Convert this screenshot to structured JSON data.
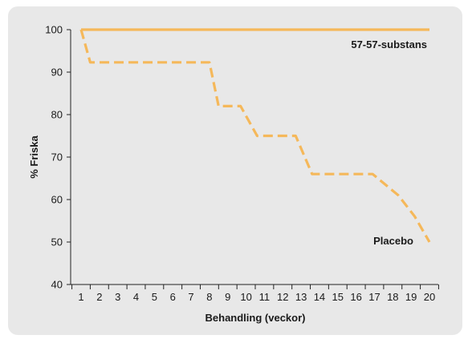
{
  "chart_data": {
    "type": "line",
    "title": "",
    "xlabel": "Behandling (veckor)",
    "ylabel": "% Friska",
    "x": [
      1,
      2,
      3,
      4,
      5,
      6,
      7,
      8,
      9,
      10,
      11,
      12,
      13,
      14,
      15,
      16,
      17,
      18,
      19,
      20
    ],
    "xlim": [
      1,
      20
    ],
    "ylim": [
      40,
      100
    ],
    "yticks": [
      40,
      50,
      60,
      70,
      80,
      90,
      100
    ],
    "grid": false,
    "legend": "inline labels at right end of each line",
    "series": [
      {
        "name": "57-57-substans",
        "style": "solid",
        "color": "#f5b85a",
        "points": [
          [
            1,
            100
          ],
          [
            20,
            100
          ]
        ]
      },
      {
        "name": "Placebo",
        "style": "dashed",
        "color": "#f5b85a",
        "points": [
          [
            1,
            100
          ],
          [
            1.5,
            92.3
          ],
          [
            8,
            92.3
          ],
          [
            8.5,
            82
          ],
          [
            9.7,
            82
          ],
          [
            10.6,
            75
          ],
          [
            12.7,
            75
          ],
          [
            13.6,
            66
          ],
          [
            16.9,
            66
          ],
          [
            18.3,
            61
          ],
          [
            19.2,
            56
          ],
          [
            20,
            50
          ]
        ]
      }
    ]
  }
}
